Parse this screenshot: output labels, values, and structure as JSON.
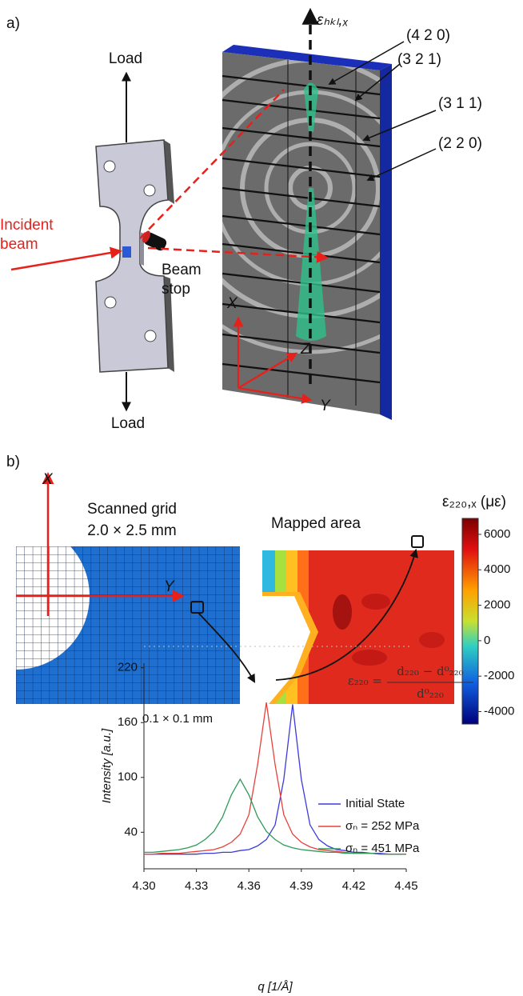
{
  "panel_a": {
    "label": "a)",
    "strain_axis": "εₕₖₗ,ₓ",
    "planes": [
      "(4 2 0)",
      "(3 2 1)",
      "(3 1 1)",
      "(2 2 0)"
    ],
    "load_top": "Load",
    "load_bottom": "Load",
    "incident_beam": [
      "Incident",
      "beam"
    ],
    "beam_stop": [
      "Beam",
      "stop"
    ],
    "axes": {
      "x": "X",
      "z": "Z",
      "y": "Y"
    }
  },
  "panel_b": {
    "label": "b)",
    "axis_x": "X",
    "axis_y": "Y",
    "scanned_grid": [
      "Scanned grid",
      "2.0 × 2.5 mm"
    ],
    "pixel_size": "0.1 × 0.1 mm",
    "mapped_area": "Mapped area",
    "colorbar": {
      "title": "ε₂₂₀,ₓ (με)",
      "lim": [
        -4700,
        6900
      ],
      "ticks": [
        6000,
        4000,
        2000,
        0,
        -2000,
        -4000
      ]
    }
  },
  "chart_data": {
    "type": "line",
    "x_label": "q [1/Å]",
    "y_label": "Intensity [a.u.]",
    "formula": {
      "lhs": "ε₂₂₀ =",
      "numerator": "d₂₂₀ − d⁰₂₂₀",
      "denominator": "d⁰₂₂₀"
    },
    "x": [
      4.3,
      4.305,
      4.31,
      4.315,
      4.32,
      4.325,
      4.33,
      4.335,
      4.34,
      4.345,
      4.35,
      4.355,
      4.36,
      4.365,
      4.37,
      4.375,
      4.38,
      4.385,
      4.39,
      4.395,
      4.4,
      4.405,
      4.41,
      4.415,
      4.42,
      4.425,
      4.43,
      4.435,
      4.44,
      4.445,
      4.45
    ],
    "series": [
      {
        "name": "Initial State",
        "color": "#3b3bdc",
        "values": [
          16,
          16,
          16,
          16,
          16,
          16,
          16,
          17,
          17,
          18,
          18,
          20,
          21,
          25,
          32,
          48,
          98,
          180,
          98,
          48,
          32,
          25,
          21,
          20,
          18,
          18,
          17,
          17,
          16,
          16,
          16
        ]
      },
      {
        "name": "σₙ = 252 MPa",
        "color": "#e8403a",
        "values": [
          16,
          16,
          17,
          17,
          17,
          18,
          19,
          20,
          21,
          24,
          29,
          38,
          59,
          114,
          182,
          114,
          59,
          38,
          29,
          24,
          21,
          20,
          19,
          18,
          17,
          17,
          17,
          16,
          16,
          16,
          16
        ]
      },
      {
        "name": "σₙ = 451 MPa",
        "color": "#2e9a5a",
        "values": [
          18,
          18,
          19,
          20,
          21,
          23,
          26,
          32,
          41,
          57,
          81,
          98,
          81,
          57,
          41,
          32,
          26,
          23,
          21,
          20,
          19,
          18,
          18,
          17,
          17,
          17,
          17,
          16,
          16,
          16,
          16
        ]
      }
    ],
    "xlim": [
      4.3,
      4.45
    ],
    "ylim": [
      0,
      225
    ],
    "xticks": [
      {
        "value": 4.3,
        "label": "4.30"
      },
      4.33,
      4.36,
      4.39,
      4.42,
      4.45
    ],
    "yticks": [
      40,
      100,
      160,
      220
    ]
  }
}
